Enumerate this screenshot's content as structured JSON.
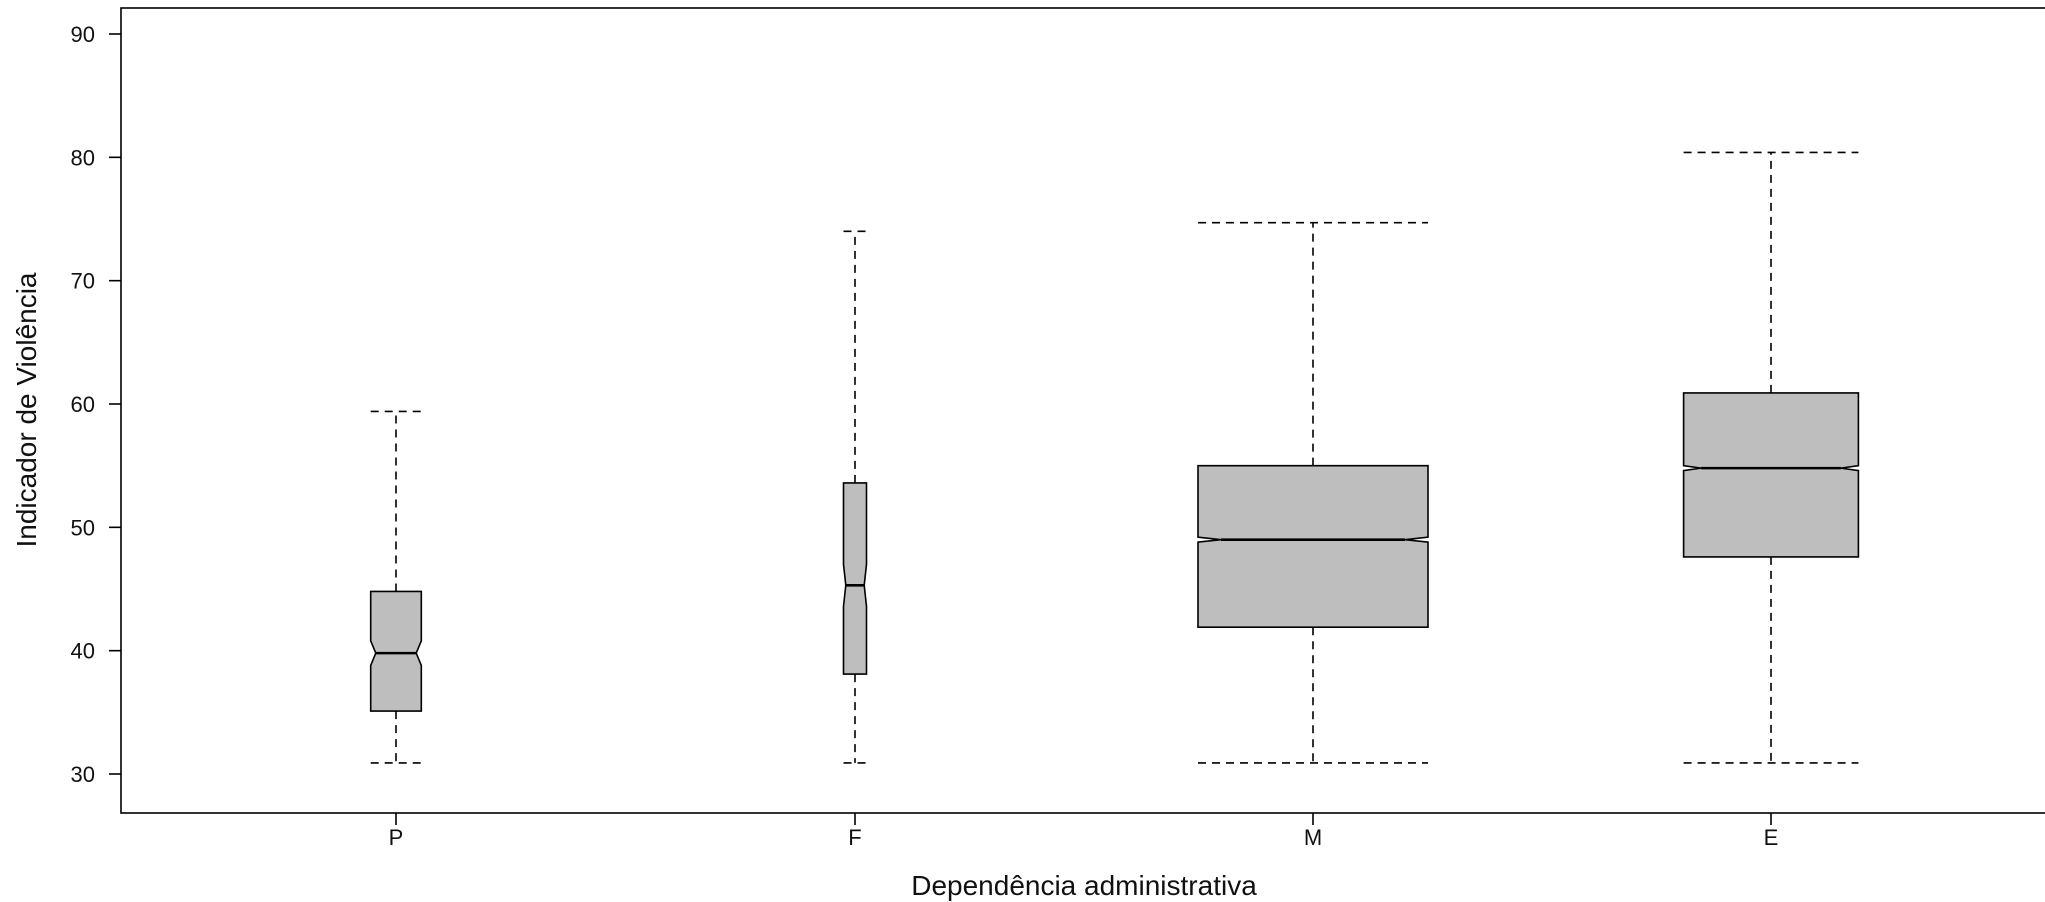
{
  "chart_data": {
    "type": "boxplot",
    "xlabel": "Dependência administrativa",
    "ylabel": "Indicador de Violência",
    "ylim": [
      27,
      92
    ],
    "yticks": [
      30,
      40,
      50,
      60,
      70,
      80,
      90
    ],
    "categories": [
      "P",
      "F",
      "M",
      "E"
    ],
    "notched": true,
    "box_fill": "#bebebe",
    "boxes": [
      {
        "category": "P",
        "whisker_low": 30.9,
        "q1": 35.1,
        "median": 39.8,
        "q3": 44.8,
        "whisker_high": 59.4,
        "notch_low": 38.8,
        "notch_high": 40.8,
        "relative_width": 0.22
      },
      {
        "category": "F",
        "whisker_low": 30.9,
        "q1": 38.1,
        "median": 45.3,
        "q3": 53.6,
        "whisker_high": 74.0,
        "notch_low": 43.6,
        "notch_high": 47.0,
        "relative_width": 0.1
      },
      {
        "category": "M",
        "whisker_low": 30.9,
        "q1": 41.9,
        "median": 49.0,
        "q3": 55.0,
        "whisker_high": 74.7,
        "notch_low": 48.8,
        "notch_high": 49.2,
        "relative_width": 1.0
      },
      {
        "category": "E",
        "whisker_low": 30.9,
        "q1": 47.6,
        "median": 54.8,
        "q3": 60.9,
        "whisker_high": 80.4,
        "notch_low": 54.6,
        "notch_high": 55.0,
        "relative_width": 0.76
      }
    ]
  }
}
